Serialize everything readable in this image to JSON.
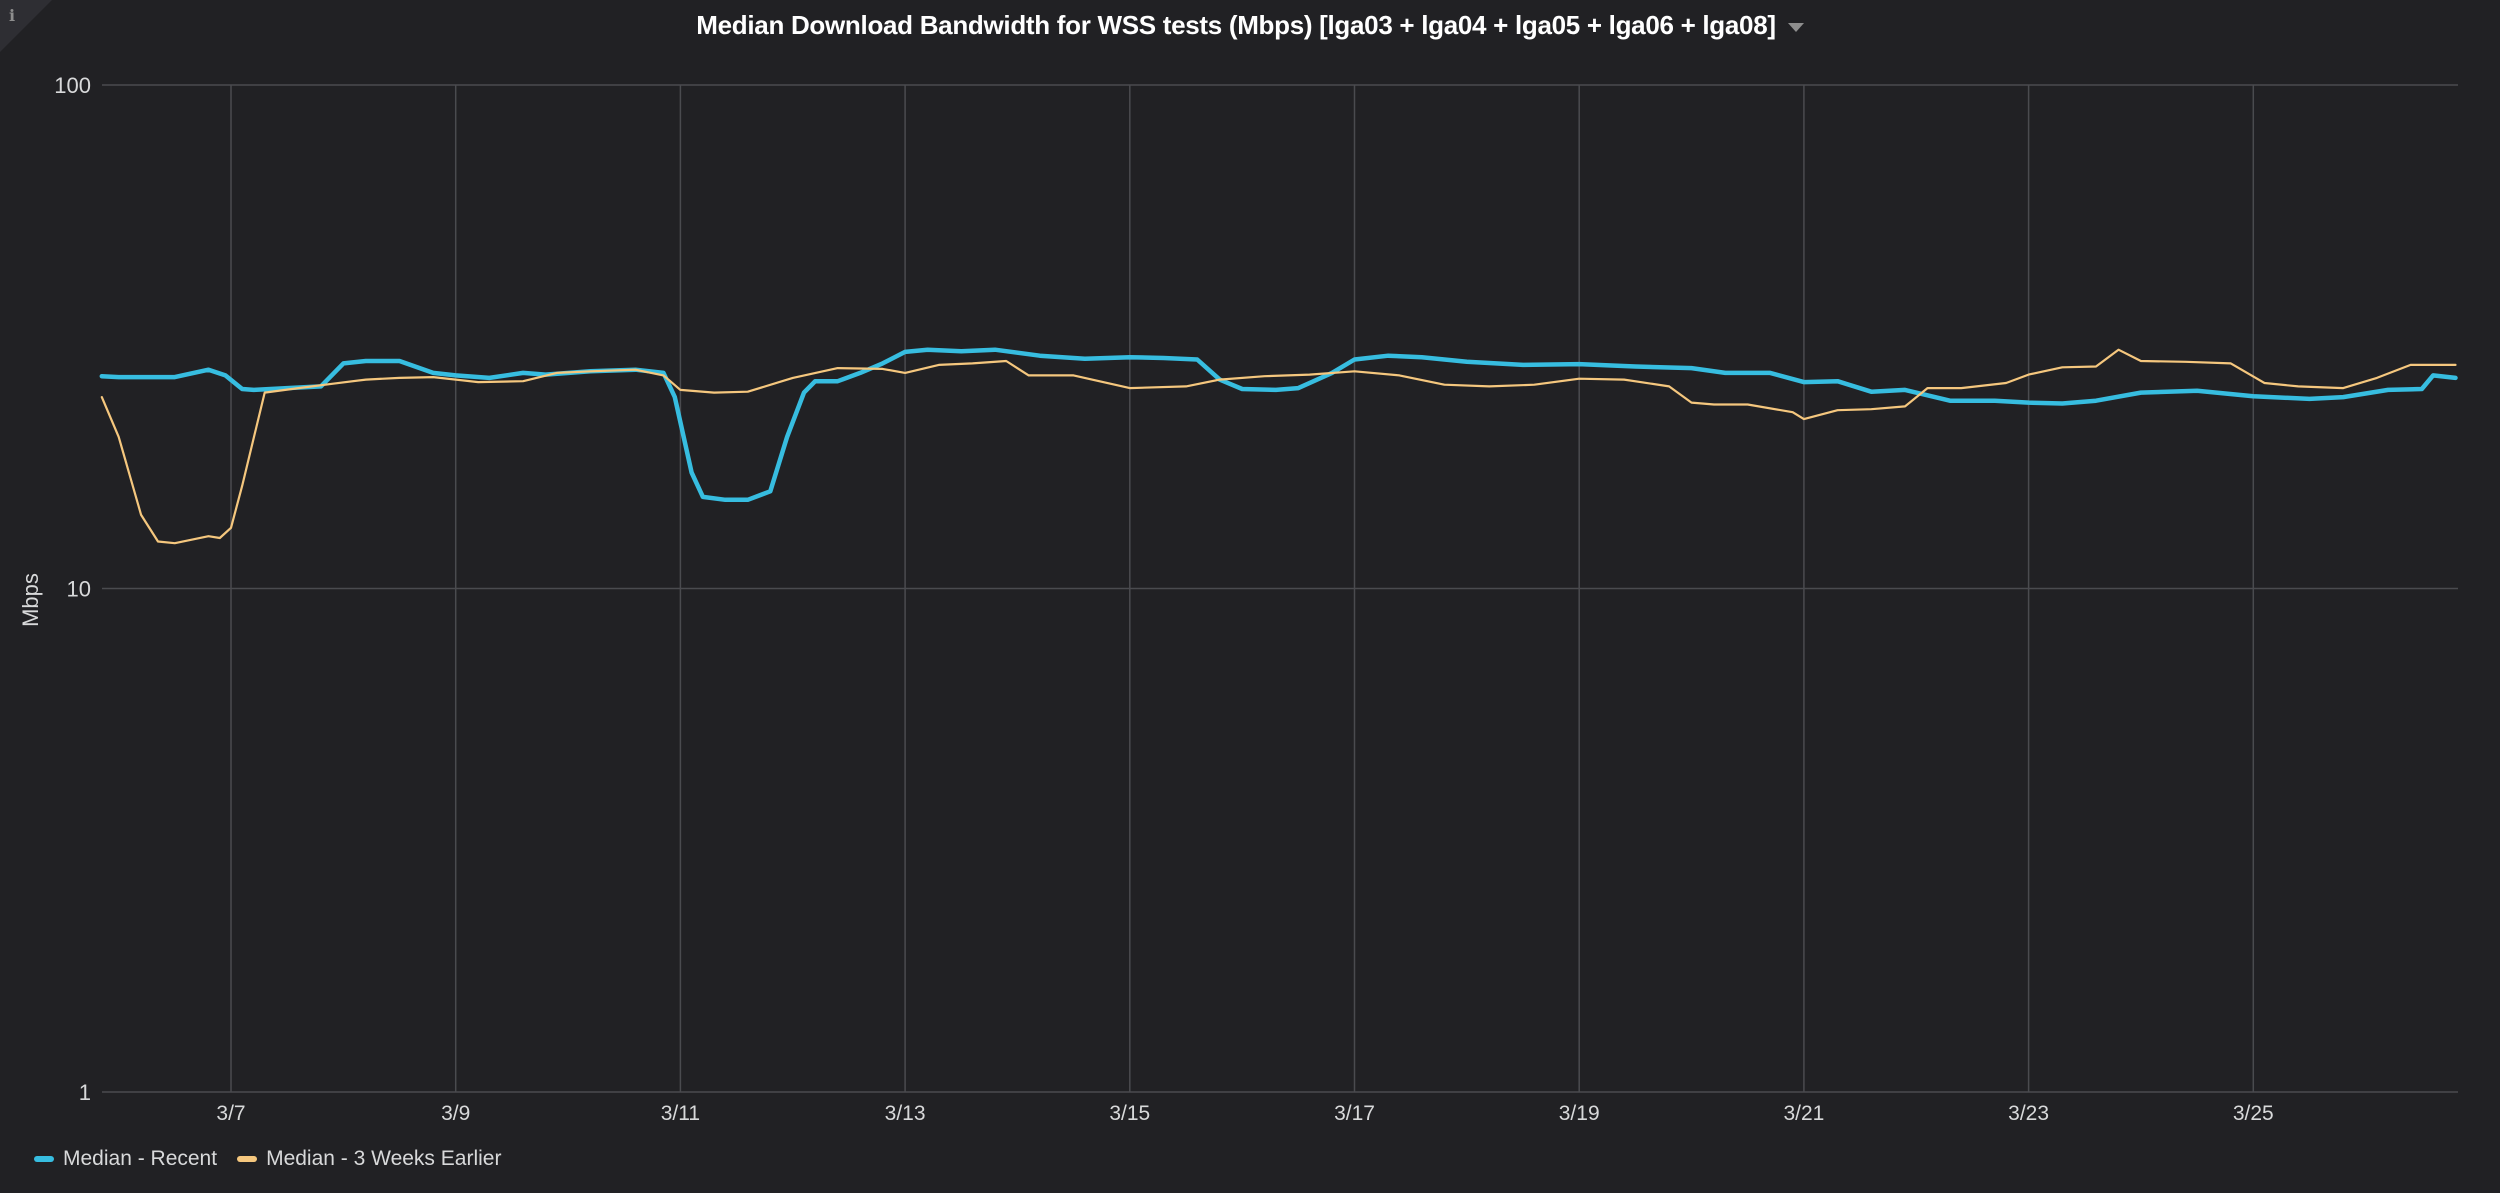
{
  "panel": {
    "title": "Median Download Bandwidth for WSS tests (Mbps) [lga03 + lga04 + lga05 + lga06 + lga08]",
    "info_icon": "info-icon",
    "menu_icon": "caret-down-icon"
  },
  "legend": [
    {
      "label": "Median - Recent",
      "color": "#37bde0"
    },
    {
      "label": "Median - 3 Weeks Earlier",
      "color": "#f5c77e"
    }
  ],
  "chart_data": {
    "type": "line",
    "title": "Median Download Bandwidth for WSS tests (Mbps) [lga03 + lga04 + lga05 + lga06 + lga08]",
    "xlabel": "",
    "ylabel": "Mbps",
    "yscale": "log",
    "ylim": [
      1,
      100
    ],
    "yticks": [
      "1",
      "10",
      "100"
    ],
    "xticks": [
      "3/7",
      "3/9",
      "3/11",
      "3/13",
      "3/15",
      "3/17",
      "3/19",
      "3/21",
      "3/23",
      "3/25"
    ],
    "xtick_days": [
      7,
      9,
      11,
      13,
      15,
      17,
      19,
      21,
      23,
      25
    ],
    "xlim_days": [
      5.85,
      26.8
    ],
    "grid": true,
    "legend_position": "bottom-left",
    "series": [
      {
        "name": "Median - Recent",
        "color": "#37bde0",
        "x": [
          5.85,
          6.0,
          6.2,
          6.5,
          6.8,
          6.95,
          7.1,
          7.2,
          7.5,
          7.8,
          8.0,
          8.2,
          8.5,
          8.8,
          9.0,
          9.3,
          9.6,
          9.8,
          10.2,
          10.6,
          10.85,
          10.95,
          11.1,
          11.2,
          11.4,
          11.6,
          11.8,
          11.95,
          12.1,
          12.2,
          12.4,
          12.6,
          12.8,
          13.0,
          13.2,
          13.5,
          13.8,
          14.2,
          14.6,
          15.0,
          15.3,
          15.6,
          15.8,
          16.0,
          16.3,
          16.5,
          16.8,
          17.0,
          17.3,
          17.6,
          18.0,
          18.5,
          19.0,
          19.5,
          20.0,
          20.3,
          20.7,
          21.0,
          21.3,
          21.6,
          21.9,
          22.3,
          22.7,
          23.0,
          23.3,
          23.6,
          24.0,
          24.5,
          25.0,
          25.5,
          25.8,
          26.2,
          26.5,
          26.6,
          26.8
        ],
        "values": [
          26.4,
          26.3,
          26.3,
          26.3,
          27.2,
          26.5,
          24.9,
          24.8,
          25.0,
          25.2,
          28.0,
          28.3,
          28.3,
          26.8,
          26.5,
          26.2,
          26.8,
          26.6,
          27.0,
          27.2,
          26.8,
          24.0,
          17.0,
          15.2,
          15.0,
          15.0,
          15.6,
          20.0,
          24.5,
          25.8,
          25.8,
          26.8,
          28.0,
          29.5,
          29.8,
          29.6,
          29.8,
          29.0,
          28.6,
          28.8,
          28.7,
          28.5,
          26.0,
          24.9,
          24.8,
          25.0,
          26.8,
          28.5,
          29.0,
          28.8,
          28.2,
          27.8,
          27.9,
          27.6,
          27.4,
          26.8,
          26.8,
          25.7,
          25.8,
          24.6,
          24.8,
          23.6,
          23.6,
          23.4,
          23.3,
          23.6,
          24.5,
          24.7,
          24.1,
          23.8,
          24.0,
          24.8,
          24.9,
          26.5,
          26.2
        ]
      },
      {
        "name": "Median - 3 Weeks Earlier",
        "color": "#f5c77e",
        "x": [
          5.85,
          6.0,
          6.2,
          6.35,
          6.5,
          6.8,
          6.9,
          7.0,
          7.1,
          7.3,
          7.6,
          7.9,
          8.2,
          8.5,
          8.8,
          9.2,
          9.6,
          9.9,
          10.2,
          10.6,
          10.85,
          11.0,
          11.3,
          11.6,
          12.0,
          12.4,
          12.8,
          13.0,
          13.3,
          13.6,
          13.9,
          14.1,
          14.5,
          15.0,
          15.5,
          15.8,
          16.2,
          16.6,
          17.0,
          17.4,
          17.8,
          18.2,
          18.6,
          19.0,
          19.4,
          19.8,
          20.0,
          20.2,
          20.5,
          20.9,
          21.0,
          21.3,
          21.6,
          21.9,
          22.1,
          22.4,
          22.8,
          23.0,
          23.3,
          23.6,
          23.8,
          24.0,
          24.4,
          24.8,
          25.1,
          25.4,
          25.8,
          26.1,
          26.4,
          26.8
        ],
        "values": [
          24.0,
          20.0,
          14.0,
          12.4,
          12.3,
          12.7,
          12.6,
          13.2,
          16.0,
          24.5,
          25.0,
          25.5,
          26.0,
          26.2,
          26.3,
          25.7,
          25.8,
          26.8,
          27.0,
          27.2,
          26.5,
          24.8,
          24.5,
          24.6,
          26.2,
          27.4,
          27.3,
          26.8,
          27.8,
          28.0,
          28.3,
          26.5,
          26.5,
          25.0,
          25.2,
          26.0,
          26.4,
          26.6,
          27.0,
          26.5,
          25.4,
          25.2,
          25.4,
          26.1,
          26.0,
          25.2,
          23.4,
          23.2,
          23.2,
          22.4,
          21.7,
          22.6,
          22.7,
          23.0,
          25.0,
          25.0,
          25.6,
          26.6,
          27.5,
          27.6,
          29.8,
          28.3,
          28.2,
          28.0,
          25.6,
          25.2,
          25.0,
          26.2,
          27.8,
          27.8
        ]
      }
    ]
  }
}
